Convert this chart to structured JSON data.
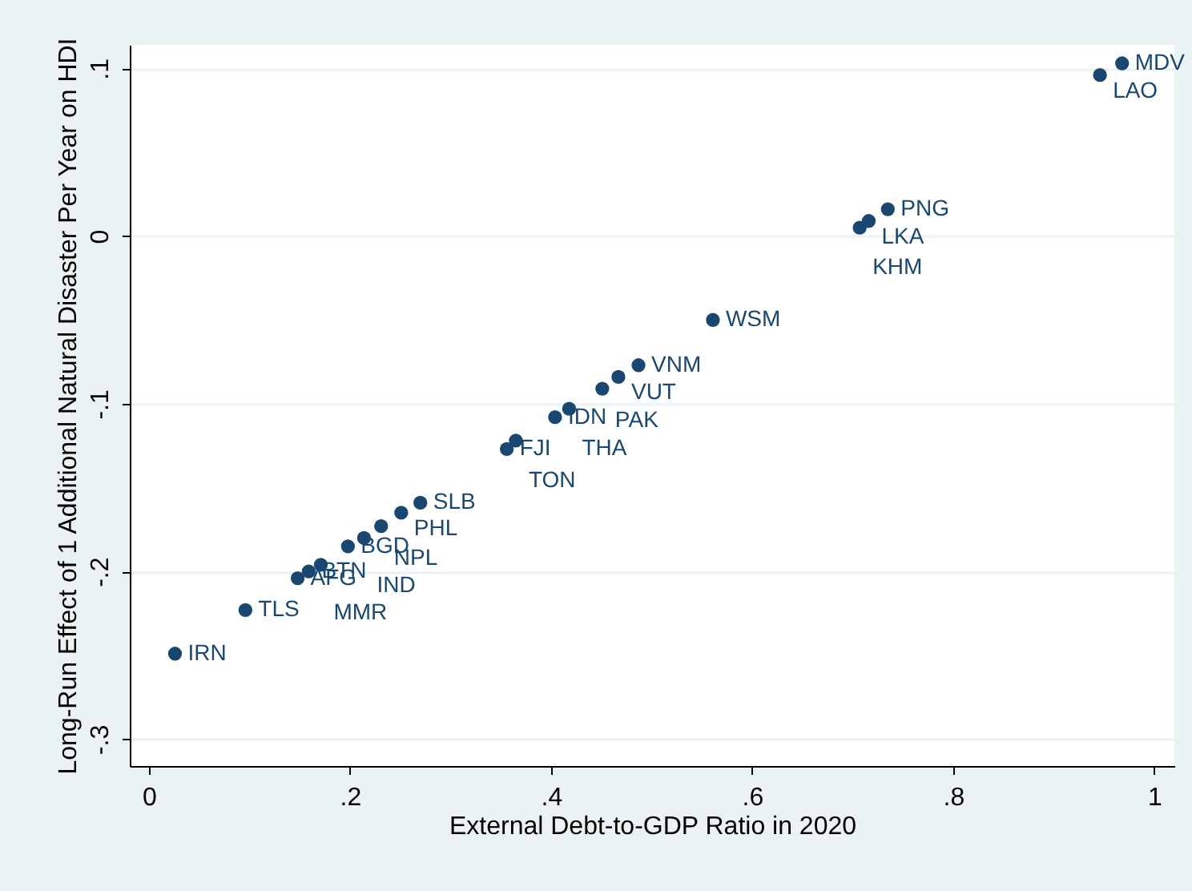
{
  "chart_data": {
    "type": "scatter",
    "xlabel": "External Debt-to-GDP Ratio in 2020",
    "ylabel": "Long-Run Effect of 1 Additional Natural Disaster Per Year on HDI",
    "x": [
      0.968,
      0.946,
      0.735,
      0.716,
      0.707,
      0.561,
      0.487,
      0.467,
      0.451,
      0.418,
      0.404,
      0.365,
      0.356,
      0.27,
      0.251,
      0.231,
      0.214,
      0.198,
      0.171,
      0.159,
      0.148,
      0.096,
      0.026
    ],
    "series": [
      {
        "color": "#1a476f",
        "values": [
          0.103,
          0.096,
          0.016,
          0.009,
          0.005,
          -0.05,
          -0.077,
          -0.084,
          -0.091,
          -0.103,
          -0.108,
          -0.122,
          -0.127,
          -0.159,
          -0.165,
          -0.173,
          -0.18,
          -0.185,
          -0.196,
          -0.2,
          -0.204,
          -0.223,
          -0.249
        ]
      }
    ],
    "annotations": [
      {
        "text": "MDV",
        "x": 0.968,
        "y": 0.103
      },
      {
        "text": "LAO",
        "x": 0.946,
        "y": 0.096
      },
      {
        "text": "PNG",
        "x": 0.735,
        "y": 0.016
      },
      {
        "text": "LKA",
        "x": 0.716,
        "y": 0.009
      },
      {
        "text": "KHM",
        "x": 0.707,
        "y": 0.005
      },
      {
        "text": "WSM",
        "x": 0.561,
        "y": -0.05
      },
      {
        "text": "VNM",
        "x": 0.487,
        "y": -0.077
      },
      {
        "text": "VUT",
        "x": 0.467,
        "y": -0.084
      },
      {
        "text": "PAK",
        "x": 0.451,
        "y": -0.091
      },
      {
        "text": "THA",
        "x": 0.418,
        "y": -0.103
      },
      {
        "text": "IDN",
        "x": 0.404,
        "y": -0.108
      },
      {
        "text": "TON",
        "x": 0.365,
        "y": -0.122
      },
      {
        "text": "FJI",
        "x": 0.356,
        "y": -0.127
      },
      {
        "text": "SLB",
        "x": 0.27,
        "y": -0.159
      },
      {
        "text": "PHL",
        "x": 0.251,
        "y": -0.165
      },
      {
        "text": "NPL",
        "x": 0.231,
        "y": -0.173
      },
      {
        "text": "IND",
        "x": 0.214,
        "y": -0.18
      },
      {
        "text": "BGD",
        "x": 0.198,
        "y": -0.185
      },
      {
        "text": "MMR",
        "x": 0.171,
        "y": -0.196
      },
      {
        "text": "BTN",
        "x": 0.159,
        "y": -0.2
      },
      {
        "text": "AFG",
        "x": 0.148,
        "y": -0.204
      },
      {
        "text": "TLS",
        "x": 0.096,
        "y": -0.223
      },
      {
        "text": "IRN",
        "x": 0.026,
        "y": -0.249
      }
    ],
    "xlim": [
      -0.019,
      1.02
    ],
    "xticks": [
      0,
      {
        "value": 0.2,
        "label": ".2"
      },
      {
        "value": 0.4,
        "label": ".4"
      },
      {
        "value": 0.6,
        "label": ".6"
      },
      {
        "value": 0.8,
        "label": ".8"
      },
      1
    ],
    "ylim": [
      -0.316,
      0.114
    ],
    "yticks": [
      {
        "value": -0.3,
        "label": "-.3"
      },
      {
        "value": -0.2,
        "label": "-.2"
      },
      {
        "value": -0.1,
        "label": "-.1"
      },
      0,
      {
        "value": 0.1,
        "label": ".1"
      }
    ],
    "grid": "y",
    "marker": "circle"
  }
}
